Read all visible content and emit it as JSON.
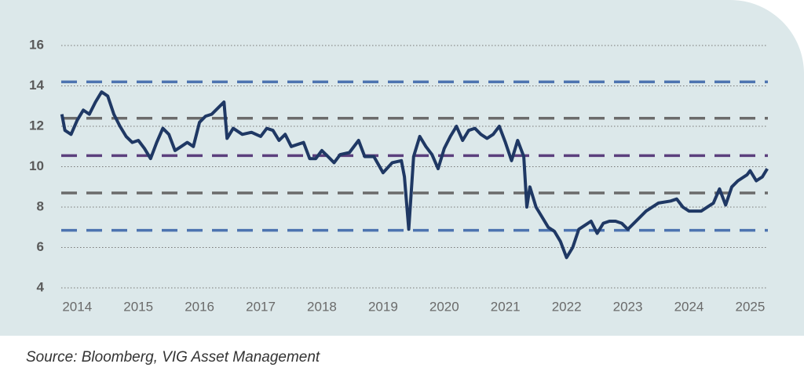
{
  "chart_data": {
    "type": "line",
    "source": "Source: Bloomberg, VIG Asset Management",
    "color": "#1f3864",
    "x": [
      2013.75,
      2013.8,
      2013.9,
      2014.0,
      2014.1,
      2014.2,
      2014.3,
      2014.4,
      2014.5,
      2014.6,
      2014.7,
      2014.8,
      2014.9,
      2015.0,
      2015.1,
      2015.2,
      2015.3,
      2015.4,
      2015.5,
      2015.6,
      2015.7,
      2015.8,
      2015.9,
      2016.0,
      2016.1,
      2016.2,
      2016.3,
      2016.4,
      2016.45,
      2016.55,
      2016.7,
      2016.85,
      2017.0,
      2017.1,
      2017.2,
      2017.3,
      2017.4,
      2017.5,
      2017.7,
      2017.8,
      2017.9,
      2018.0,
      2018.1,
      2018.2,
      2018.3,
      2018.45,
      2018.6,
      2018.7,
      2018.85,
      2019.0,
      2019.15,
      2019.3,
      2019.35,
      2019.42,
      2019.5,
      2019.6,
      2019.7,
      2019.8,
      2019.9,
      2020.0,
      2020.1,
      2020.2,
      2020.3,
      2020.4,
      2020.5,
      2020.6,
      2020.7,
      2020.8,
      2020.9,
      2021.0,
      2021.1,
      2021.2,
      2021.3,
      2021.35,
      2021.4,
      2021.5,
      2021.6,
      2021.7,
      2021.8,
      2021.9,
      2022.0,
      2022.1,
      2022.2,
      2022.3,
      2022.4,
      2022.5,
      2022.6,
      2022.7,
      2022.8,
      2022.9,
      2023.0,
      2023.1,
      2023.3,
      2023.5,
      2023.7,
      2023.8,
      2023.9,
      2024.0,
      2024.2,
      2024.4,
      2024.5,
      2024.6,
      2024.7,
      2024.8,
      2024.95,
      2025.0,
      2025.1,
      2025.2,
      2025.28
    ],
    "values": [
      12.6,
      11.8,
      11.6,
      12.3,
      12.8,
      12.6,
      13.2,
      13.7,
      13.5,
      12.6,
      12.0,
      11.5,
      11.2,
      11.3,
      10.9,
      10.4,
      11.2,
      11.9,
      11.6,
      10.8,
      11.0,
      11.2,
      11.0,
      12.2,
      12.5,
      12.6,
      12.9,
      13.2,
      11.4,
      11.9,
      11.6,
      11.7,
      11.5,
      11.9,
      11.8,
      11.3,
      11.6,
      11.0,
      11.2,
      10.4,
      10.4,
      10.8,
      10.5,
      10.2,
      10.6,
      10.7,
      11.3,
      10.5,
      10.5,
      9.7,
      10.2,
      10.3,
      9.5,
      6.9,
      10.5,
      11.5,
      11.0,
      10.6,
      9.9,
      10.9,
      11.5,
      12.0,
      11.3,
      11.8,
      11.9,
      11.6,
      11.4,
      11.6,
      12.0,
      11.2,
      10.3,
      11.3,
      10.5,
      8.0,
      9.0,
      8.0,
      7.5,
      7.0,
      6.8,
      6.3,
      5.5,
      6.0,
      6.9,
      7.1,
      7.3,
      6.7,
      7.2,
      7.3,
      7.3,
      7.2,
      6.9,
      7.2,
      7.8,
      8.2,
      8.3,
      8.4,
      8.0,
      7.8,
      7.8,
      8.2,
      8.9,
      8.1,
      9.0,
      9.3,
      9.6,
      9.8,
      9.3,
      9.5,
      9.9
    ],
    "xlim": [
      2013.74,
      2025.29
    ],
    "xticks": [
      2014,
      2015,
      2016,
      2017,
      2018,
      2019,
      2020,
      2021,
      2022,
      2023,
      2024,
      2025
    ],
    "ylim": [
      4,
      16
    ],
    "yticks": [
      4,
      6,
      8,
      10,
      12,
      14,
      16
    ],
    "grid": true,
    "reference_lines": [
      {
        "value": 14.2,
        "color": "#4d74b0"
      },
      {
        "value": 12.4,
        "color": "#6b6b6b"
      },
      {
        "value": 10.55,
        "color": "#5b3f7d"
      },
      {
        "value": 8.7,
        "color": "#6b6b6b"
      },
      {
        "value": 6.85,
        "color": "#4d74b0"
      }
    ]
  }
}
